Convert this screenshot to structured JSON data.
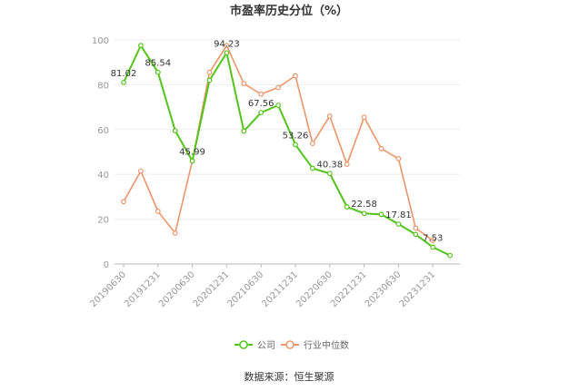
{
  "chart_data": {
    "type": "line",
    "title": "市盈率历史分位（%）",
    "source": "数据来源：恒生聚源",
    "ylim": [
      0,
      100
    ],
    "yticks": [
      0,
      20,
      40,
      60,
      80,
      100
    ],
    "x_tick_labels": [
      "20190630",
      "20191231",
      "20200630",
      "20201231",
      "20210630",
      "20211231",
      "20220630",
      "20221231",
      "20230630",
      "20231231"
    ],
    "grid": true,
    "legend_position": "bottom",
    "colors": {
      "company": "#52c41a",
      "industry": "#f0956a"
    },
    "series": [
      {
        "name": "公司",
        "values": [
          81.02,
          97.5,
          85.54,
          59.5,
          45.99,
          82.0,
          94.23,
          59.3,
          67.56,
          70.8,
          53.26,
          42.7,
          40.38,
          25.5,
          22.58,
          22.1,
          17.81,
          13.2,
          7.53,
          3.8
        ],
        "labels": {
          "0": "81.02",
          "2": "85.54",
          "4": "45.99",
          "6": "94.23",
          "8": "67.56",
          "10": "53.26",
          "12": "40.38",
          "14": "22.58",
          "16": "17.81",
          "18": "7.53"
        }
      },
      {
        "name": "行业中位数",
        "values": [
          27.8,
          41.5,
          23.5,
          13.8,
          46.0,
          85.5,
          97.5,
          80.5,
          75.8,
          78.8,
          84.0,
          53.8,
          66.0,
          44.5,
          65.5,
          51.5,
          47.0,
          16.0,
          10.5,
          null
        ]
      }
    ]
  }
}
